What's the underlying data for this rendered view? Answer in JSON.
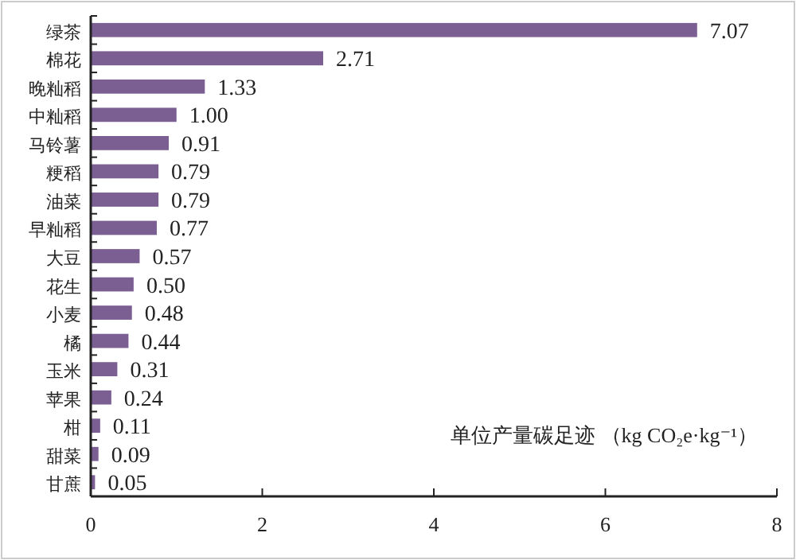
{
  "chart_data": {
    "type": "bar",
    "orientation": "horizontal",
    "xlabel": "单位产量碳足迹 （kg CO₂e·kg⁻¹）",
    "categories": [
      "绿茶",
      "棉花",
      "晚籼稻",
      "中籼稻",
      "马铃薯",
      "粳稻",
      "油菜",
      "早籼稻",
      "大豆",
      "花生",
      "小麦",
      "橘",
      "玉米",
      "苹果",
      "柑",
      "甜菜",
      "甘蔗"
    ],
    "values": [
      7.07,
      2.71,
      1.33,
      1.0,
      0.91,
      0.79,
      0.79,
      0.77,
      0.57,
      0.5,
      0.48,
      0.44,
      0.31,
      0.24,
      0.11,
      0.09,
      0.05
    ],
    "value_labels": [
      "7.07",
      "2.71",
      "1.33",
      "1.00",
      "0.91",
      "0.79",
      "0.79",
      "0.77",
      "0.57",
      "0.50",
      "0.48",
      "0.44",
      "0.31",
      "0.24",
      "0.11",
      "0.09",
      "0.05"
    ],
    "color": "#7b5f93",
    "xlim": [
      0,
      8
    ],
    "xticks": [
      0,
      2,
      4,
      6,
      8
    ],
    "grid": false
  }
}
